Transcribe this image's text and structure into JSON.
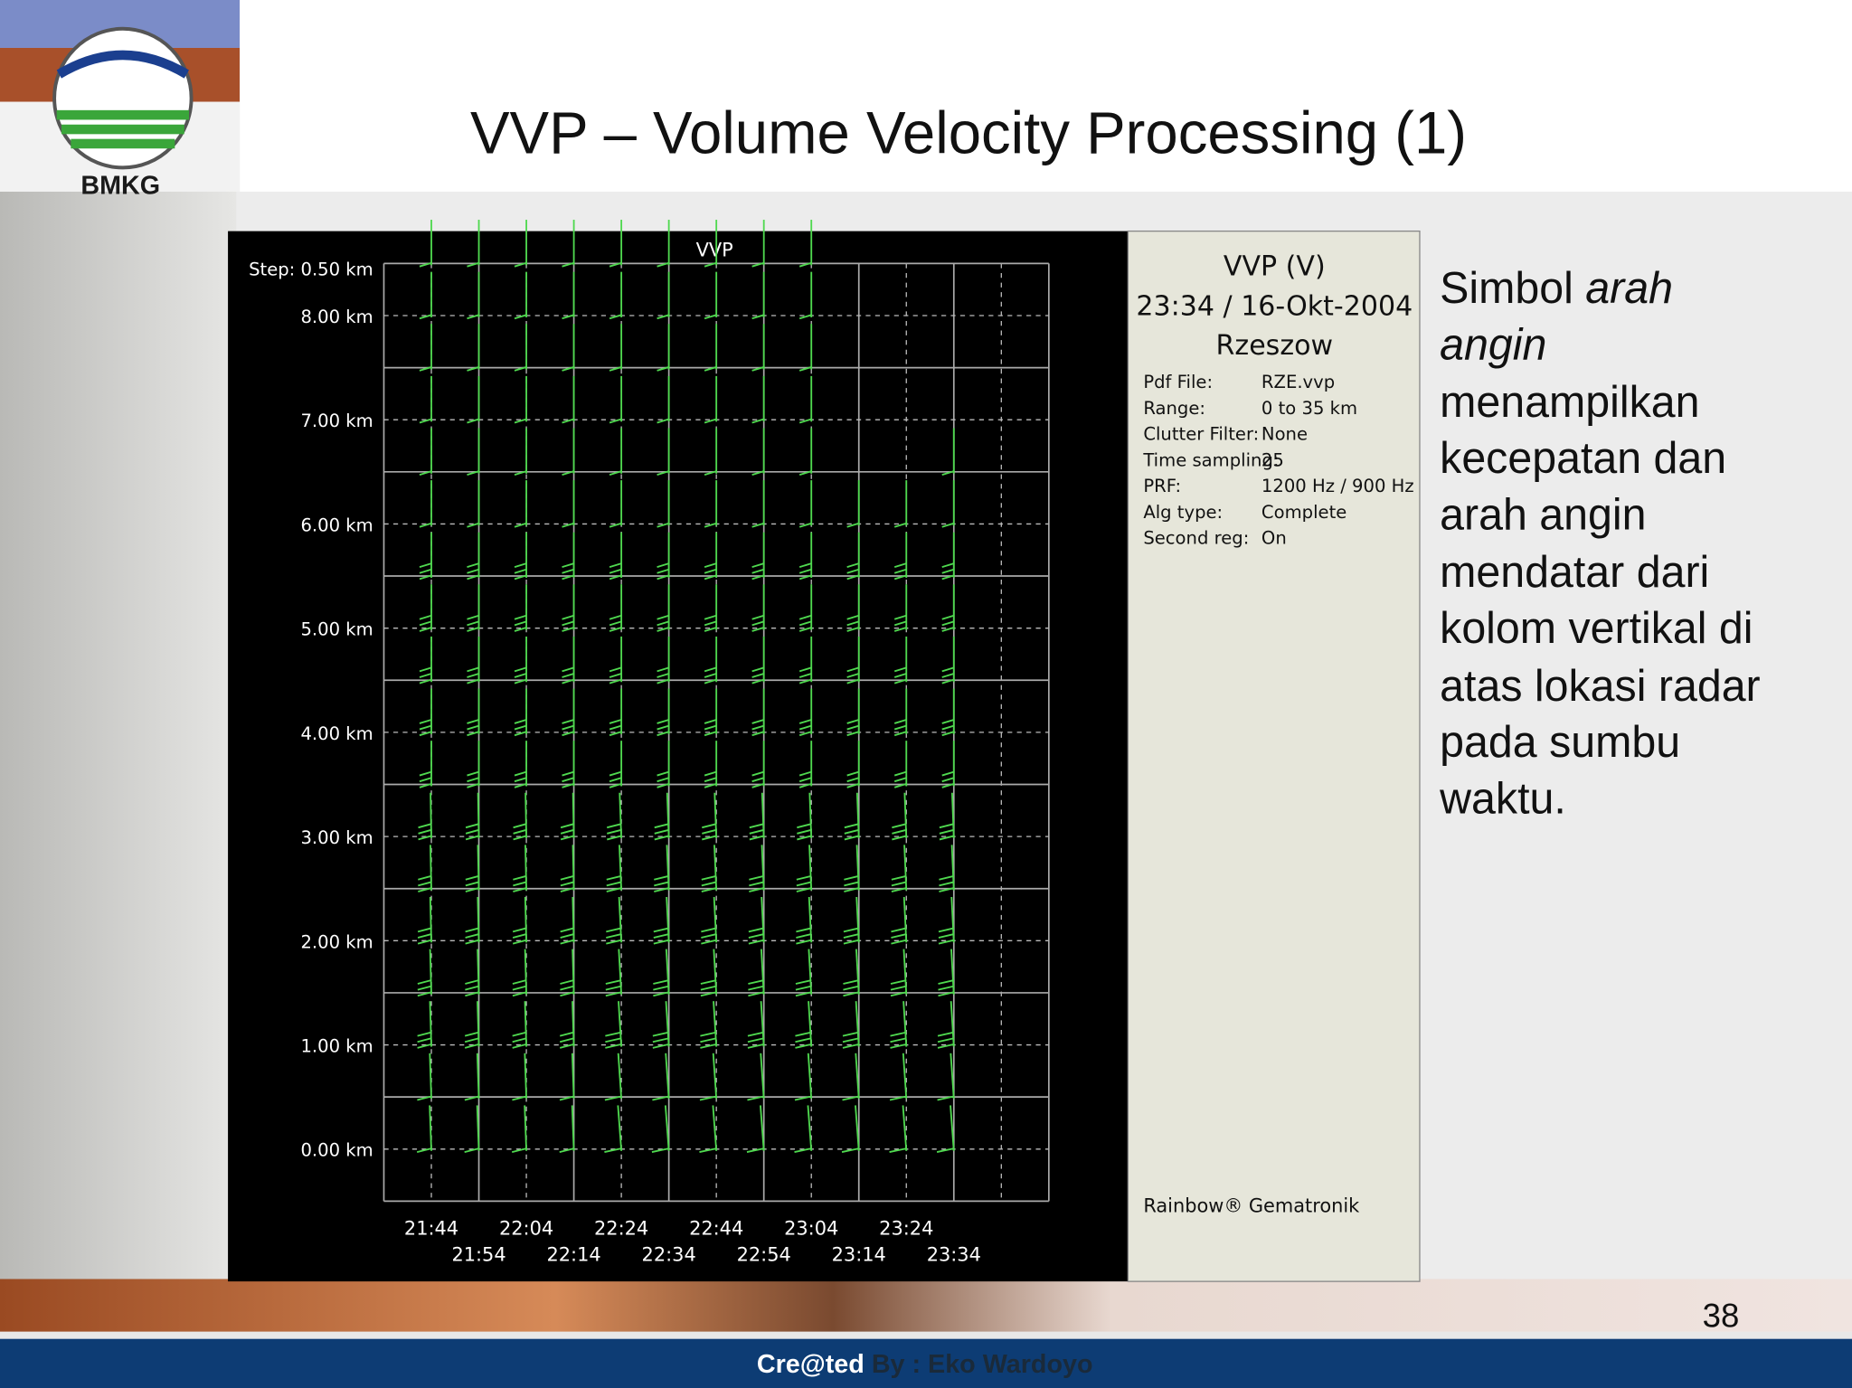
{
  "header": {
    "title": "VVP – Volume Velocity Processing (1)",
    "logo_text": "BMKG"
  },
  "vvp_panel": {
    "title": "VVP",
    "step": "Step: 0.50 km",
    "y_labels": [
      "8.00 km",
      "7.00 km",
      "6.00 km",
      "5.00 km",
      "4.00 km",
      "3.00 km",
      "2.00 km",
      "1.00 km",
      "0.00 km"
    ],
    "x_labels": [
      "21:44",
      "21:54",
      "22:04",
      "22:14",
      "22:24",
      "22:34",
      "22:44",
      "22:54",
      "23:04",
      "23:14",
      "23:24",
      "23:34"
    ]
  },
  "info": {
    "title": "VVP (V)",
    "datetime": "23:34 / 16-Okt-2004",
    "site": "Rzeszow",
    "fields": [
      {
        "label": "Pdf File:",
        "value": "RZE.vvp"
      },
      {
        "label": "Range:",
        "value": "0 to 35 km"
      },
      {
        "label": "Clutter Filter:",
        "value": "None"
      },
      {
        "label": "Time sampling:",
        "value": "25"
      },
      {
        "label": "PRF:",
        "value": "1200 Hz / 900 Hz"
      },
      {
        "label": "Alg type:",
        "value": "Complete"
      },
      {
        "label": "Second reg:",
        "value": "On"
      }
    ],
    "footer": "Rainbow® Gematronik"
  },
  "body": {
    "lines": [
      [
        "Simbol ",
        "arah"
      ],
      [
        "angin"
      ],
      [
        "menampilkan"
      ],
      [
        "kecepatan dan"
      ],
      [
        "arah angin"
      ],
      [
        "mendatar dari"
      ],
      [
        "kolom vertikal di"
      ],
      [
        "atas lokasi radar"
      ],
      [
        "pada sumbu"
      ],
      [
        "waktu."
      ]
    ]
  },
  "page_number": "38",
  "footer": {
    "created": "Cre@ted",
    "author": "By : Eko Wardoyo"
  }
}
